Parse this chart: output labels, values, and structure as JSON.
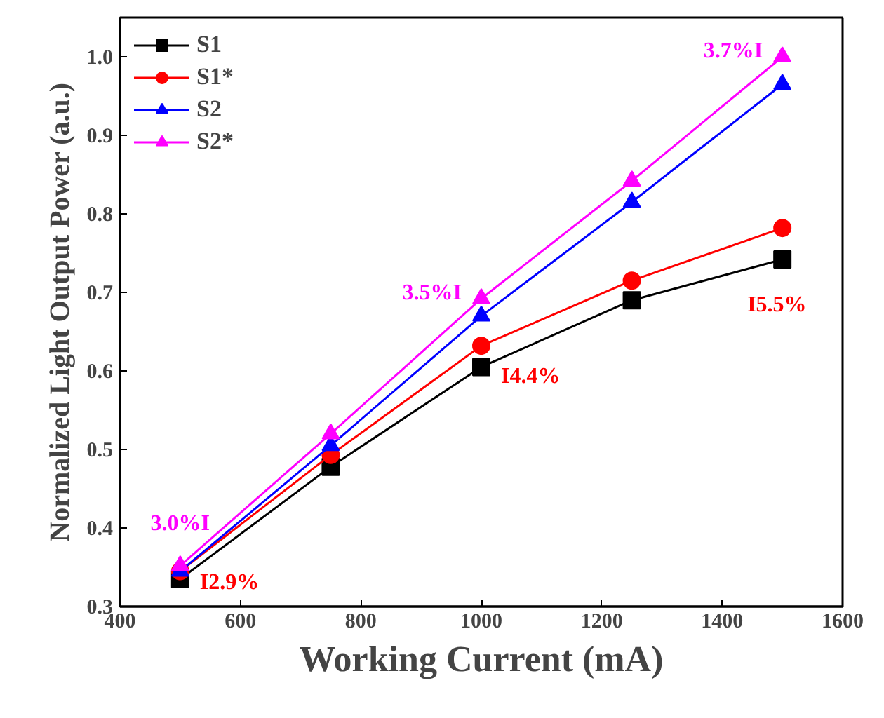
{
  "chart_data": {
    "type": "line",
    "xlabel": "Working Current (mA)",
    "ylabel": "Normalized Light Output Power (a.u.)",
    "x": [
      500,
      750,
      1000,
      1250,
      1500
    ],
    "series": [
      {
        "name": "S1",
        "color": "#000000",
        "marker": "square",
        "values": [
          0.335,
          0.478,
          0.605,
          0.69,
          0.742
        ]
      },
      {
        "name": "S1*",
        "color": "#ff0000",
        "marker": "circle",
        "values": [
          0.345,
          0.493,
          0.632,
          0.715,
          0.782
        ]
      },
      {
        "name": "S2",
        "color": "#0000ff",
        "marker": "triangle",
        "values": [
          0.345,
          0.505,
          0.67,
          0.815,
          0.965
        ]
      },
      {
        "name": "S2*",
        "color": "#ff00ff",
        "marker": "triangle",
        "values": [
          0.352,
          0.52,
          0.692,
          0.842,
          1.0
        ]
      }
    ],
    "annotations": [
      {
        "text": "3.0%I",
        "x": 500,
        "y": 0.352
      },
      {
        "text": "I2.9%",
        "x": 500,
        "y": 0.345
      },
      {
        "text": "3.5%I",
        "x": 1000,
        "y": 0.692
      },
      {
        "text": "I4.4%",
        "x": 1000,
        "y": 0.632
      },
      {
        "text": "3.7%I",
        "x": 1500,
        "y": 1.0
      },
      {
        "text": "I5.5%",
        "x": 1500,
        "y": 0.782
      }
    ],
    "xlim": [
      400,
      1600
    ],
    "ylim": [
      0.3,
      1.05
    ],
    "xticks": [
      400,
      600,
      800,
      1000,
      1200,
      1400,
      1600
    ],
    "yticks": [
      0.3,
      0.4,
      0.5,
      0.6,
      0.7,
      0.8,
      0.9,
      {
        "value": 1,
        "label": "1.0"
      }
    ],
    "grid": false,
    "legend": "top left",
    "line_style": "solid"
  }
}
